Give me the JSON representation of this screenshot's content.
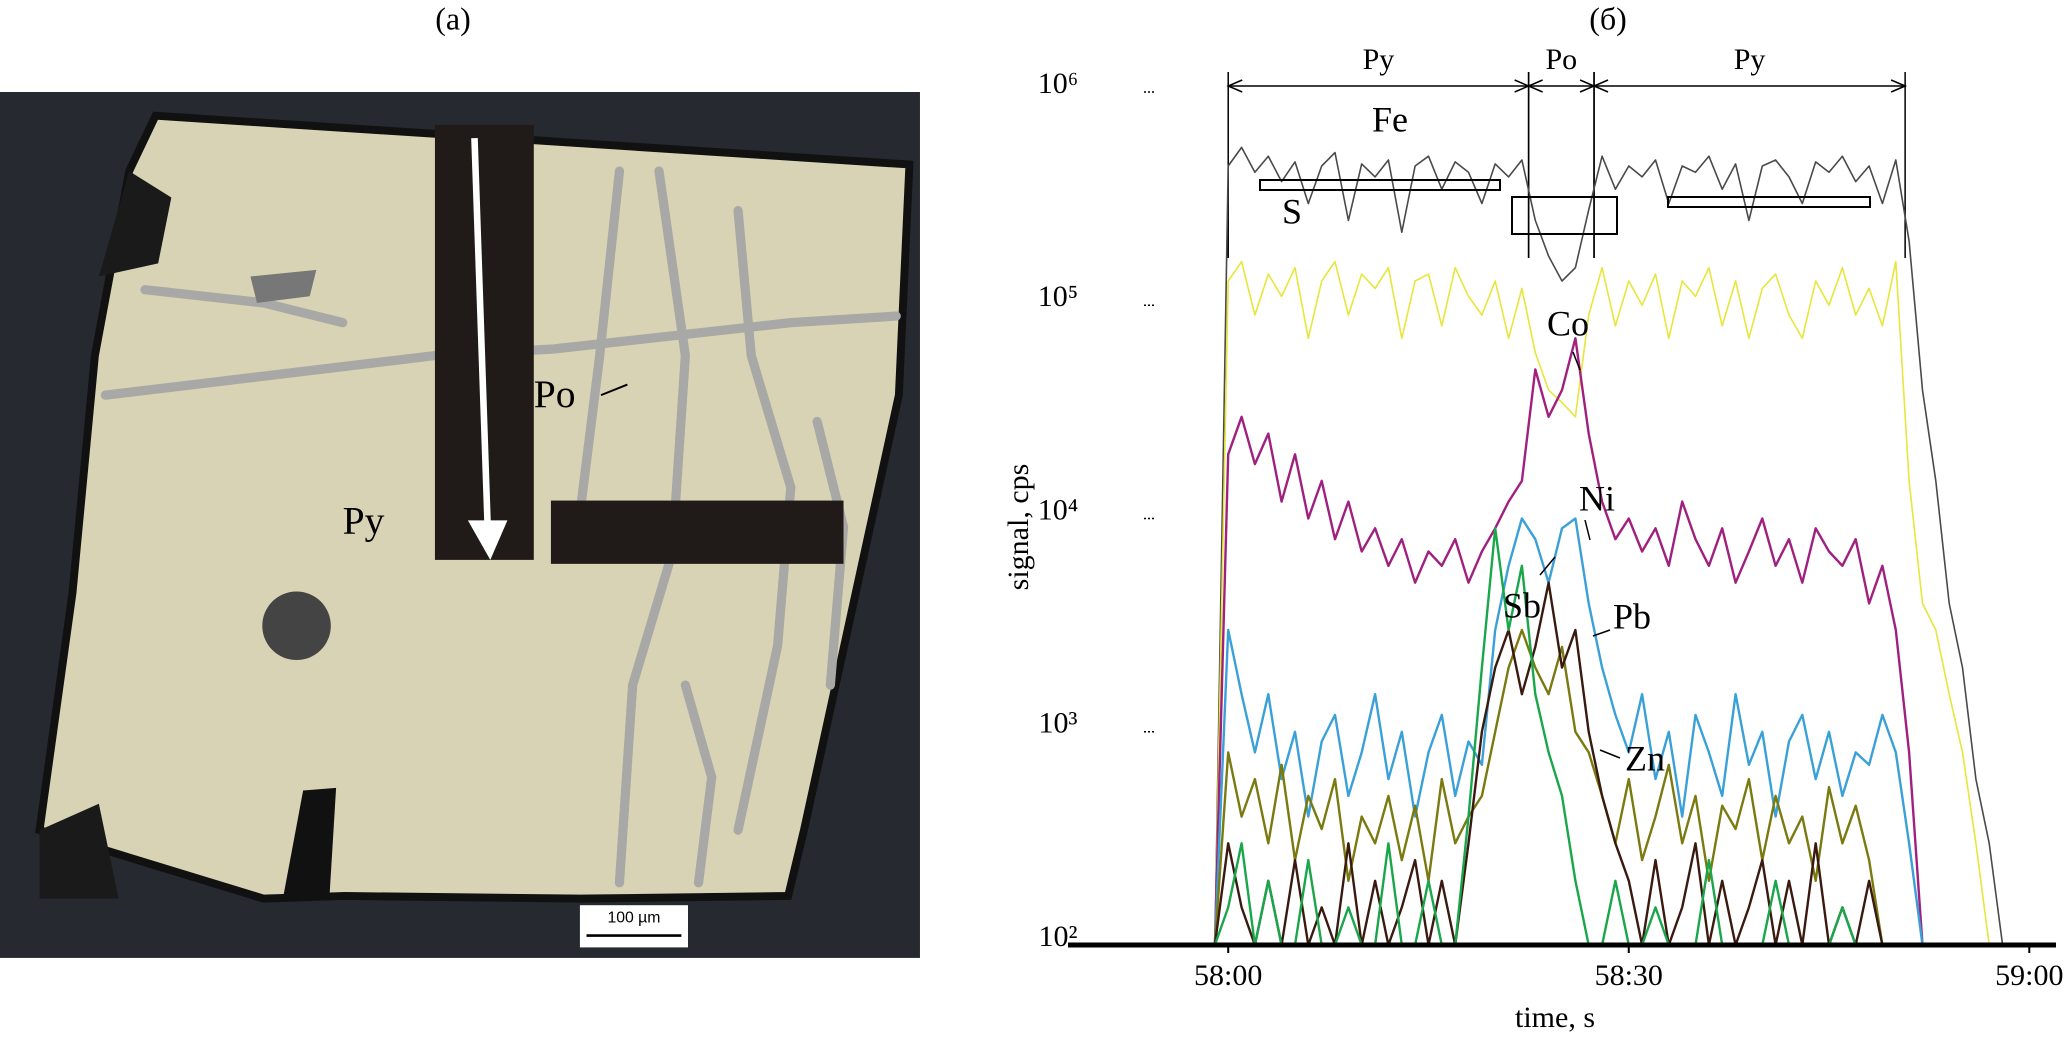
{
  "photo": {
    "panel_label": "(a)",
    "mineral_labels": [
      "Py",
      "Po"
    ],
    "scale_bar": "100 µm"
  },
  "chart_data": {
    "type": "line",
    "panel_label": "(б)",
    "x_label": "time, s",
    "y_label": "signal, cps",
    "log_y": true,
    "xlim": [
      3468,
      3542
    ],
    "xticks": [
      {
        "value": 3480,
        "label": "58:00"
      },
      {
        "value": 3510,
        "label": "58:30"
      },
      {
        "value": 3540,
        "label": "59:00"
      }
    ],
    "ylim": [
      100,
      1000000
    ],
    "yticks": [
      {
        "value": 100,
        "label": "10²"
      },
      {
        "value": 1000,
        "label": "10³"
      },
      {
        "value": 10000,
        "label": "10⁴"
      },
      {
        "value": 100000,
        "label": "10⁵"
      },
      {
        "value": 1000000,
        "label": "10⁶"
      }
    ],
    "regions": [
      {
        "label": "Py",
        "start": 3480,
        "end": 3502.5
      },
      {
        "label": "Po",
        "start": 3502.5,
        "end": 3507.4
      },
      {
        "label": "Py",
        "start": 3507.4,
        "end": 3530.7
      }
    ],
    "x": [
      3478,
      3479,
      3480,
      3481,
      3482,
      3483,
      3484,
      3485,
      3486,
      3487,
      3488,
      3489,
      3490,
      3491,
      3492,
      3493,
      3494,
      3495,
      3496,
      3497,
      3498,
      3499,
      3500,
      3501,
      3502,
      3503,
      3504,
      3505,
      3506,
      3507,
      3508,
      3509,
      3510,
      3511,
      3512,
      3513,
      3514,
      3515,
      3516,
      3517,
      3518,
      3519,
      3520,
      3521,
      3522,
      3523,
      3524,
      3525,
      3526,
      3527,
      3528,
      3529,
      3530,
      3531,
      3532,
      3533,
      3534,
      3535,
      3536,
      3537,
      3538,
      3539
    ],
    "series": [
      {
        "name": "Fe",
        "color": "#4a4a4a",
        "values": [
          100,
          100,
          450000,
          550000,
          420000,
          500000,
          380000,
          470000,
          300000,
          450000,
          520000,
          250000,
          460000,
          400000,
          480000,
          220000,
          450000,
          500000,
          350000,
          470000,
          420000,
          300000,
          460000,
          400000,
          480000,
          250000,
          170000,
          130000,
          150000,
          280000,
          500000,
          350000,
          450000,
          400000,
          480000,
          300000,
          450000,
          420000,
          500000,
          350000,
          460000,
          250000,
          450000,
          480000,
          400000,
          300000,
          470000,
          420000,
          500000,
          380000,
          450000,
          300000,
          480000,
          200000,
          40000,
          15000,
          4000,
          2000,
          600,
          300,
          100,
          100
        ]
      },
      {
        "name": "S",
        "color": "#e6e63c",
        "values": [
          100,
          100,
          130000,
          160000,
          90000,
          140000,
          110000,
          150000,
          70000,
          130000,
          160000,
          90000,
          140000,
          120000,
          150000,
          70000,
          130000,
          140000,
          80000,
          150000,
          110000,
          90000,
          130000,
          70000,
          120000,
          60000,
          40000,
          35000,
          30000,
          90000,
          150000,
          80000,
          130000,
          100000,
          140000,
          70000,
          130000,
          110000,
          150000,
          80000,
          130000,
          70000,
          120000,
          140000,
          90000,
          70000,
          130000,
          100000,
          150000,
          90000,
          120000,
          80000,
          160000,
          15000,
          4000,
          3000,
          1500,
          800,
          300,
          100,
          100,
          100
        ]
      },
      {
        "name": "Co",
        "color": "#a0207f",
        "values": [
          100,
          100,
          20000,
          30000,
          18000,
          25000,
          12000,
          20000,
          10000,
          15000,
          8000,
          12000,
          7000,
          9000,
          6000,
          8000,
          5000,
          7000,
          6000,
          8000,
          5000,
          7000,
          9000,
          12000,
          15000,
          50000,
          30000,
          40000,
          70000,
          25000,
          12000,
          8000,
          10000,
          7000,
          9000,
          6000,
          12000,
          8000,
          6000,
          9000,
          5000,
          7000,
          10000,
          6000,
          8000,
          5000,
          9000,
          7000,
          6000,
          8000,
          4000,
          6000,
          3000,
          800,
          100,
          100,
          100,
          100,
          100,
          100,
          100,
          100
        ]
      },
      {
        "name": "Ni",
        "color": "#3aa0d8",
        "values": [
          100,
          100,
          3000,
          1500,
          800,
          1500,
          600,
          1000,
          400,
          900,
          1200,
          500,
          800,
          1500,
          600,
          1000,
          400,
          800,
          1200,
          500,
          900,
          700,
          3000,
          6000,
          10000,
          8000,
          5000,
          9000,
          10000,
          4000,
          2000,
          1200,
          800,
          1500,
          600,
          1000,
          400,
          1200,
          800,
          500,
          1500,
          700,
          1000,
          400,
          900,
          1200,
          600,
          1000,
          500,
          800,
          700,
          1200,
          800,
          300,
          100,
          100,
          100,
          100,
          100,
          100,
          100,
          100
        ]
      },
      {
        "name": "Zn",
        "color": "#7a7a10",
        "values": [
          100,
          100,
          800,
          400,
          600,
          300,
          700,
          250,
          500,
          350,
          600,
          200,
          400,
          300,
          500,
          250,
          450,
          200,
          600,
          300,
          400,
          500,
          1000,
          2000,
          3000,
          2000,
          1500,
          2500,
          1000,
          800,
          500,
          300,
          600,
          250,
          400,
          700,
          300,
          500,
          200,
          450,
          350,
          600,
          250,
          500,
          300,
          400,
          200,
          550,
          300,
          450,
          250,
          100,
          100,
          100,
          100,
          100,
          100,
          100,
          100,
          100,
          100,
          100
        ]
      },
      {
        "name": "Pb",
        "color": "#3a1a10",
        "values": [
          100,
          100,
          300,
          150,
          100,
          200,
          100,
          250,
          100,
          150,
          100,
          300,
          100,
          200,
          100,
          150,
          250,
          100,
          200,
          100,
          300,
          1000,
          2000,
          3000,
          1500,
          2500,
          5000,
          2000,
          3000,
          1000,
          500,
          300,
          200,
          100,
          250,
          100,
          150,
          300,
          100,
          200,
          100,
          150,
          250,
          100,
          200,
          100,
          300,
          100,
          150,
          100,
          200,
          100,
          100,
          100,
          100,
          100,
          100,
          100,
          100,
          100,
          100,
          100
        ]
      },
      {
        "name": "Sb",
        "color": "#1aa64a",
        "values": [
          100,
          100,
          150,
          300,
          100,
          200,
          100,
          100,
          250,
          100,
          100,
          150,
          100,
          100,
          300,
          100,
          100,
          200,
          100,
          100,
          400,
          2000,
          9000,
          3000,
          6000,
          1500,
          800,
          500,
          200,
          100,
          100,
          200,
          100,
          100,
          150,
          100,
          100,
          100,
          250,
          100,
          100,
          100,
          100,
          200,
          100,
          100,
          100,
          100,
          150,
          100,
          100,
          100,
          100,
          100,
          100,
          100,
          100,
          100,
          100,
          100,
          100,
          100
        ]
      }
    ]
  }
}
